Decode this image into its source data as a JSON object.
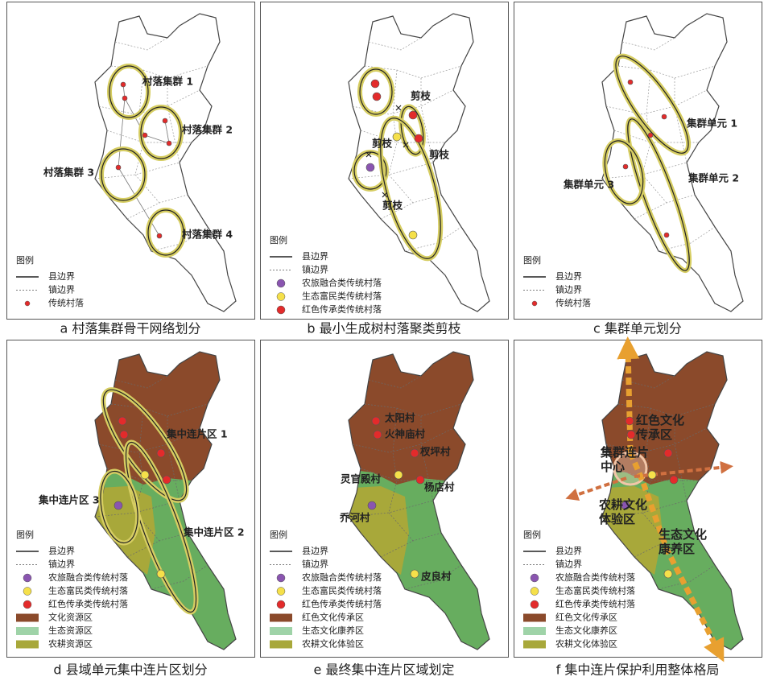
{
  "panels": [
    {
      "caption": "a 村落集群骨干网络划分",
      "map_labels": [
        "村落集群 1",
        "村落集群 2",
        "村落集群 3",
        "村落集群 4"
      ],
      "legend_title": "图例",
      "legend": [
        "县边界",
        "镇边界",
        "传统村落"
      ]
    },
    {
      "caption": "b 最小生成树村落聚类剪枝",
      "map_labels": [
        "剪枝",
        "剪枝",
        "剪枝",
        "剪枝"
      ],
      "legend_title": "图例",
      "legend": [
        "县边界",
        "镇边界",
        "农旅融合类传统村落",
        "生态富民类传统村落",
        "红色传承类传统村落"
      ]
    },
    {
      "caption": "c 集群单元划分",
      "map_labels": [
        "集群单元 1",
        "集群单元 2",
        "集群单元 3"
      ],
      "legend_title": "图例",
      "legend": [
        "县边界",
        "镇边界",
        "传统村落"
      ]
    },
    {
      "caption": "d 县域单元集中连片区划分",
      "map_labels": [
        "集中连片区 1",
        "集中连片区 2",
        "集中连片区 3"
      ],
      "legend_title": "图例",
      "legend": [
        "县边界",
        "镇边界",
        "农旅融合类传统村落",
        "生态富民类传统村落",
        "红色传承类传统村落",
        "文化资源区",
        "生态资源区",
        "农耕资源区"
      ]
    },
    {
      "caption": "e 最终集中连片区域划定",
      "map_labels": [
        "太阳村",
        "火神庙村",
        "杈坪村",
        "灵官殿村",
        "杨店村",
        "乔河村",
        "皮良村"
      ],
      "legend_title": "图例",
      "legend": [
        "县边界",
        "镇边界",
        "农旅融合类传统村落",
        "生态富民类传统村落",
        "红色传承类传统村落",
        "红色文化传承区",
        "生态文化康养区",
        "农耕文化体验区"
      ]
    },
    {
      "caption": "f 集中连片保护利用整体格局",
      "map_labels": [
        "红色文化传承区",
        "集群连片中心",
        "农耕文化体验区",
        "生态文化康养区"
      ],
      "legend_title": "图例",
      "legend": [
        "县边界",
        "镇边界",
        "农旅融合类传统村落",
        "生态富民类传统村落",
        "红色传承类传统村落",
        "红色文化传承区",
        "生态文化康养区",
        "农耕文化体验区"
      ]
    }
  ]
}
